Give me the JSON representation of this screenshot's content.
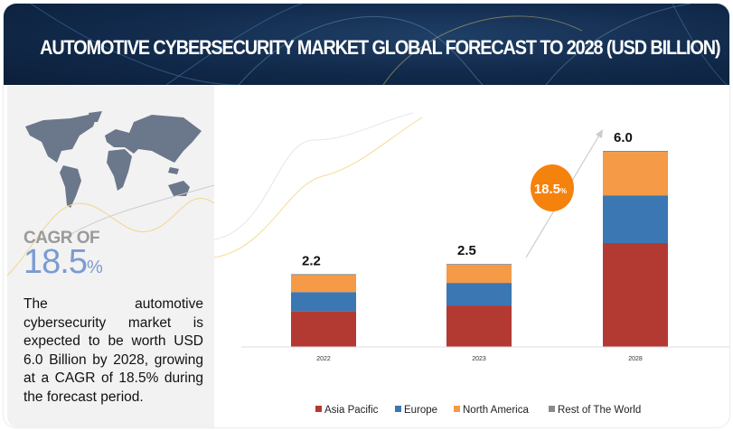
{
  "title": "AUTOMOTIVE CYBERSECURITY MARKET GLOBAL FORECAST TO 2028 (USD BILLION)",
  "side_panel": {
    "cagr_label": "CAGR OF",
    "cagr_value": "18.5",
    "cagr_unit": "%",
    "description": "The automotive cybersecurity market is expected to be worth USD 6.0 Billion by 2028, growing at a CAGR of 18.5% during the forecast period."
  },
  "chart_data": {
    "type": "bar",
    "stacked": true,
    "categories": [
      "2022",
      "2023",
      "2028"
    ],
    "totals": [
      "2.2",
      "2.5",
      "6.0"
    ],
    "series": [
      {
        "name": "Asia Pacific",
        "color": "#b33a32",
        "values": [
          1.1,
          1.27,
          3.18
        ]
      },
      {
        "name": "Europe",
        "color": "#3a77b3",
        "values": [
          0.58,
          0.69,
          1.46
        ]
      },
      {
        "name": "North America",
        "color": "#f59a46",
        "values": [
          0.52,
          0.55,
          1.33
        ]
      },
      {
        "name": "Rest of The World",
        "color": "#8a8a8a",
        "values": [
          0.03,
          0.03,
          0.03
        ]
      }
    ],
    "ylim": [
      0,
      6.0
    ],
    "grid": false,
    "legend": "bottom",
    "annotation": {
      "value": "18.5",
      "unit": "%",
      "color": "#f5820d"
    }
  }
}
